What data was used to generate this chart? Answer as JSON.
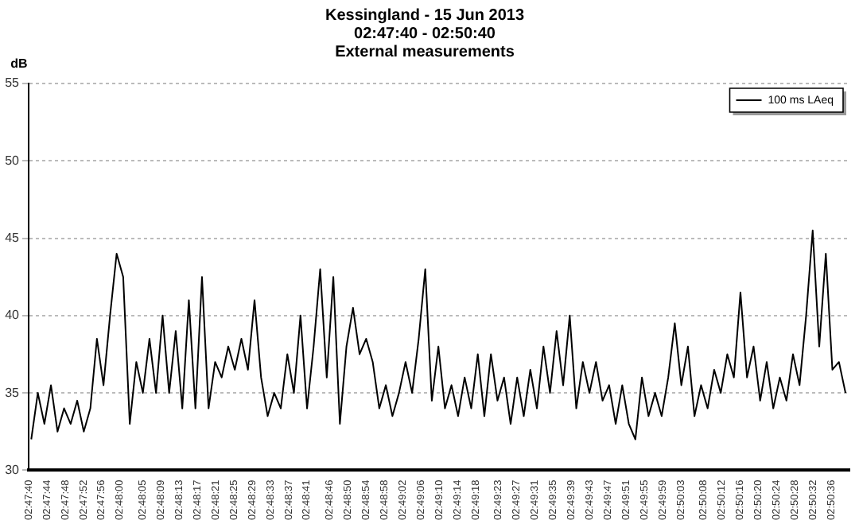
{
  "chart_data": {
    "type": "line",
    "title": "Kessingland - 15 Jun 2013\n02:47:40 - 02:50:40\nExternal measurements",
    "ylabel": "dB",
    "x": [
      2.7946,
      2.795,
      2.7954,
      2.7958,
      2.7962,
      2.7966,
      2.797,
      2.7974,
      2.7978,
      2.7982,
      2.7986,
      2.799,
      2.7994,
      2.7998,
      2.8002,
      2.8006,
      2.801,
      2.8014,
      2.8018,
      2.8022,
      2.8026,
      2.803,
      2.8034,
      2.8038,
      2.8042,
      2.8046,
      2.805,
      2.8054,
      2.8058,
      2.8062,
      2.8066,
      2.807,
      2.8074,
      2.8078,
      2.8082,
      2.8086,
      2.809,
      2.8094,
      2.8098,
      2.8102,
      2.8106,
      2.811,
      2.8114,
      2.8118,
      2.8122,
      2.8126,
      2.813,
      2.8134,
      2.8138,
      2.8142,
      2.8146,
      2.815,
      2.8154,
      2.8158,
      2.8162,
      2.8166,
      2.817,
      2.8174,
      2.8178,
      2.8182,
      2.8186,
      2.819,
      2.8194,
      2.8198,
      2.8202,
      2.8206,
      2.821,
      2.8214,
      2.8218,
      2.8222,
      2.8226,
      2.823,
      2.8234,
      2.8238,
      2.8242,
      2.8246,
      2.825,
      2.8254,
      2.8258,
      2.8262,
      2.8266,
      2.827,
      2.8274,
      2.8278,
      2.8282,
      2.8286,
      2.829,
      2.8294,
      2.8298,
      2.8302,
      2.8306,
      2.831,
      2.8314,
      2.8318,
      2.8322,
      2.8326,
      2.833,
      2.8334,
      2.8338,
      2.8342,
      2.8346,
      2.835,
      2.8354,
      2.8358,
      2.8362,
      2.8366,
      2.837,
      2.8374,
      2.8378,
      2.8382,
      2.8386,
      2.839,
      2.8394,
      2.8398,
      2.8402,
      2.8406,
      2.841,
      2.8414,
      2.8418,
      2.8422,
      2.8426,
      2.843,
      2.8434,
      2.8438,
      2.8442
    ],
    "series": [
      {
        "name": "100 ms LAeq",
        "color": "#000000",
        "values": [
          32,
          35,
          33,
          35.5,
          32.5,
          34,
          33,
          34.5,
          32.5,
          34,
          38.5,
          35.5,
          40,
          44,
          42.5,
          33,
          37,
          35,
          38.5,
          35,
          40,
          35,
          39,
          34,
          41,
          34,
          42.5,
          34,
          37,
          36,
          38,
          36.5,
          38.5,
          36.5,
          41,
          36,
          33.5,
          35,
          34,
          37.5,
          35,
          40,
          34,
          38,
          43,
          36,
          42.5,
          33,
          38,
          40.5,
          37.5,
          38.5,
          37,
          34,
          35.5,
          33.5,
          35,
          37,
          35,
          38.5,
          43,
          34.5,
          38,
          34,
          35.5,
          33.5,
          36,
          34,
          37.5,
          33.5,
          37.5,
          34.5,
          36,
          33,
          36,
          33.5,
          36.5,
          34,
          38,
          35,
          39,
          35.5,
          40,
          34,
          37,
          35,
          37,
          34.5,
          35.5,
          33,
          35.5,
          33,
          32,
          36,
          33.5,
          35,
          33.5,
          36,
          39.5,
          35.5,
          38,
          33.5,
          35.5,
          34,
          36.5,
          35,
          37.5,
          36,
          41.5,
          36,
          38,
          34.5,
          37,
          34,
          36,
          34.5,
          37.5,
          35.5,
          40,
          45.5,
          38,
          44,
          36.5,
          37,
          35
        ]
      }
    ],
    "xlim": [
      2.79444,
      2.84444
    ],
    "xticks": [
      {
        "value": 2.79444,
        "label": "02:47:40"
      },
      {
        "value": 2.79556,
        "label": "02:47:44"
      },
      {
        "value": 2.79667,
        "label": "02:47:48"
      },
      {
        "value": 2.79778,
        "label": "02:47:52"
      },
      {
        "value": 2.79889,
        "label": "02:47:56"
      },
      {
        "value": 2.8,
        "label": "02:48:00"
      },
      {
        "value": 2.80139,
        "label": "02:48:05"
      },
      {
        "value": 2.8025,
        "label": "02:48:09"
      },
      {
        "value": 2.80361,
        "label": "02:48:13"
      },
      {
        "value": 2.80472,
        "label": "02:48:17"
      },
      {
        "value": 2.80583,
        "label": "02:48:21"
      },
      {
        "value": 2.80694,
        "label": "02:48:25"
      },
      {
        "value": 2.80806,
        "label": "02:48:29"
      },
      {
        "value": 2.80917,
        "label": "02:48:33"
      },
      {
        "value": 2.81028,
        "label": "02:48:37"
      },
      {
        "value": 2.81139,
        "label": "02:48:41"
      },
      {
        "value": 2.81278,
        "label": "02:48:46"
      },
      {
        "value": 2.81389,
        "label": "02:48:50"
      },
      {
        "value": 2.815,
        "label": "02:48:54"
      },
      {
        "value": 2.81611,
        "label": "02:48:58"
      },
      {
        "value": 2.81722,
        "label": "02:49:02"
      },
      {
        "value": 2.81833,
        "label": "02:49:06"
      },
      {
        "value": 2.81944,
        "label": "02:49:10"
      },
      {
        "value": 2.82056,
        "label": "02:49:14"
      },
      {
        "value": 2.82167,
        "label": "02:49:18"
      },
      {
        "value": 2.82306,
        "label": "02:49:23"
      },
      {
        "value": 2.82417,
        "label": "02:49:27"
      },
      {
        "value": 2.82528,
        "label": "02:49:31"
      },
      {
        "value": 2.82639,
        "label": "02:49:35"
      },
      {
        "value": 2.8275,
        "label": "02:49:39"
      },
      {
        "value": 2.82861,
        "label": "02:49:43"
      },
      {
        "value": 2.82972,
        "label": "02:49:47"
      },
      {
        "value": 2.83083,
        "label": "02:49:51"
      },
      {
        "value": 2.83194,
        "label": "02:49:55"
      },
      {
        "value": 2.83306,
        "label": "02:49:59"
      },
      {
        "value": 2.83417,
        "label": "02:50:03"
      },
      {
        "value": 2.83556,
        "label": "02:50:08"
      },
      {
        "value": 2.83667,
        "label": "02:50:12"
      },
      {
        "value": 2.83778,
        "label": "02:50:16"
      },
      {
        "value": 2.83889,
        "label": "02:50:20"
      },
      {
        "value": 2.84,
        "label": "02:50:24"
      },
      {
        "value": 2.84111,
        "label": "02:50:28"
      },
      {
        "value": 2.84222,
        "label": "02:50:32"
      },
      {
        "value": 2.84333,
        "label": "02:50:36"
      }
    ],
    "ylim": [
      30,
      55
    ],
    "yticks": [
      30,
      35,
      40,
      45,
      50,
      55
    ],
    "grid": "y",
    "legend": "top right",
    "marker": "none",
    "line_style": "solid"
  }
}
